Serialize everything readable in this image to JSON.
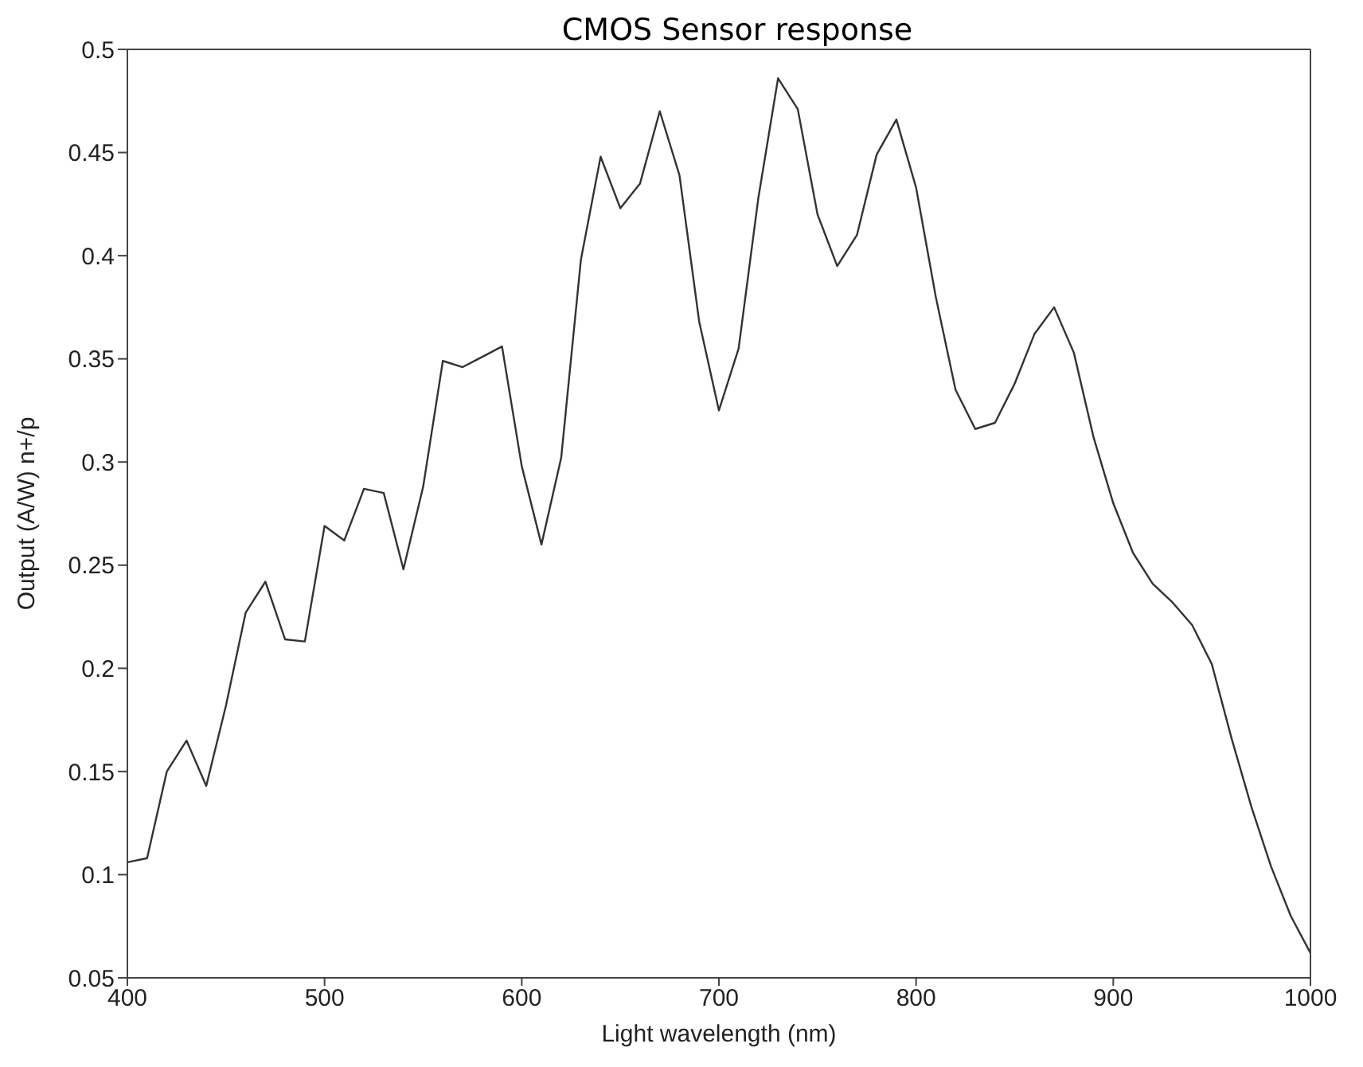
{
  "chart_data": {
    "type": "line",
    "title": "CMOS Sensor response",
    "xlabel": "Light wavelength (nm)",
    "ylabel": "Output (A/W) n+/p",
    "x": [
      400,
      410,
      420,
      430,
      440,
      450,
      460,
      470,
      480,
      490,
      500,
      510,
      520,
      530,
      540,
      550,
      560,
      570,
      580,
      590,
      600,
      610,
      620,
      630,
      640,
      650,
      660,
      670,
      680,
      690,
      700,
      710,
      720,
      730,
      740,
      750,
      760,
      770,
      780,
      790,
      800,
      810,
      820,
      830,
      840,
      850,
      860,
      870,
      880,
      890,
      900,
      910,
      920,
      930,
      940,
      950,
      960,
      970,
      980,
      990,
      1000
    ],
    "series": [
      {
        "color": "#333333",
        "values": [
          0.106,
          0.108,
          0.15,
          0.165,
          0.143,
          0.182,
          0.227,
          0.242,
          0.214,
          0.213,
          0.269,
          0.262,
          0.287,
          0.285,
          0.248,
          0.288,
          0.349,
          0.346,
          0.351,
          0.356,
          0.298,
          0.26,
          0.302,
          0.398,
          0.448,
          0.423,
          0.435,
          0.47,
          0.439,
          0.368,
          0.325,
          0.355,
          0.428,
          0.486,
          0.471,
          0.42,
          0.395,
          0.41,
          0.449,
          0.466,
          0.433,
          0.38,
          0.335,
          0.316,
          0.319,
          0.338,
          0.362,
          0.375,
          0.353,
          0.312,
          0.28,
          0.256,
          0.241,
          0.232,
          0.221,
          0.202,
          0.166,
          0.133,
          0.104,
          0.08,
          0.062
        ]
      }
    ],
    "xlim": [
      400,
      1000
    ],
    "xticks": [
      400,
      500,
      600,
      700,
      800,
      900,
      1000
    ],
    "ylim": [
      0.05,
      0.5
    ],
    "yticks": [
      0.05,
      0.1,
      0.15,
      0.2,
      0.25,
      0.3,
      0.35,
      0.4,
      0.45,
      0.5
    ],
    "grid": false,
    "legend": false,
    "marker": "none",
    "line_style": "solid"
  }
}
